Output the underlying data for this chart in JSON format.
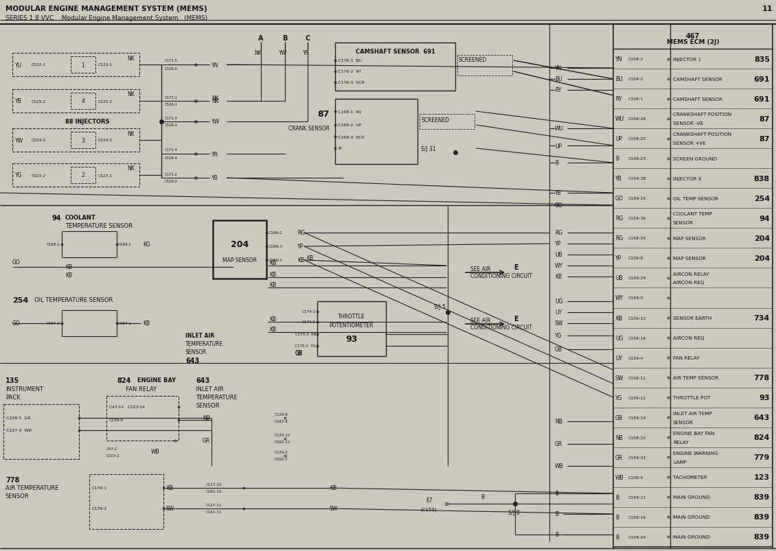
{
  "title_line1": "MODULAR ENGINE MANAGEMENT SYSTEM (MEMS)",
  "title_line2": "SERIES 1.8 VVC    Modular Engine Management System   (MEMS)",
  "page_num": "11",
  "bg_color": "#cdc9be",
  "line_color": "#222222",
  "text_color": "#111111",
  "ecm_rows": [
    {
      "wire": "YN",
      "conn": "C158-2",
      "label": "INJECTOR 1",
      "num": "835"
    },
    {
      "wire": "BU",
      "conn": "C158-2",
      "label": "CAMSHAFT SENSOR",
      "num": "691"
    },
    {
      "wire": "RY",
      "conn": "C158-1",
      "label": "CAMSHAFT SENSOR",
      "num": "691"
    },
    {
      "wire": "WU",
      "conn": "C158-28",
      "label": "CRANKSHAFT POSITION\nSENSOR -VE",
      "num": "87"
    },
    {
      "wire": "UP",
      "conn": "C158-25",
      "label": "CRANKSHAFT POSITION\nSENSOR +VE",
      "num": "87"
    },
    {
      "wire": "B",
      "conn": "C158-23",
      "label": "SCREEN GROUND",
      "num": ""
    },
    {
      "wire": "YB",
      "conn": "C159-38",
      "label": "INJECTOR 4",
      "num": "838"
    },
    {
      "wire": "GO",
      "conn": "C159-10",
      "label": "OIL TEMP SENSOR",
      "num": "254"
    },
    {
      "wire": "RG",
      "conn": "C159-36",
      "label": "COOLANT TEMP\nSENSOR",
      "num": "94"
    },
    {
      "wire": "RG",
      "conn": "C158-35",
      "label": "MAP SENSOR",
      "num": "204"
    },
    {
      "wire": "YP",
      "conn": "C159-8",
      "label": "MAP SENSOR",
      "num": "204"
    },
    {
      "wire": "UB",
      "conn": "C159-29",
      "label": "AIRCON RELAY\nAIRCON REQ",
      "num": ""
    },
    {
      "wire": "WY",
      "conn": "C159-9",
      "label": "",
      "num": ""
    },
    {
      "wire": "KB",
      "conn": "C159-13",
      "label": "SENSOR EARTH",
      "num": "734"
    },
    {
      "wire": "UG",
      "conn": "C158-19",
      "label": "AIRCON REQ",
      "num": ""
    },
    {
      "wire": "UY",
      "conn": "C159-4",
      "label": "FAN RELAY",
      "num": ""
    },
    {
      "wire": "SW",
      "conn": "C159-11",
      "label": "AIR TEMP SENSOR",
      "num": "778"
    },
    {
      "wire": "YG",
      "conn": "C159-12",
      "label": "THROTTLE POT",
      "num": "93"
    },
    {
      "wire": "GB",
      "conn": "C159-14",
      "label": "INLET AIR TEMP\nSENSOR",
      "num": "643"
    },
    {
      "wire": "NB",
      "conn": "C158-32",
      "label": "ENGINE BAY FAN\nRELAY",
      "num": "824"
    },
    {
      "wire": "GR",
      "conn": "C159-31",
      "label": "ENGINE WARNING\nLAMP",
      "num": "779"
    },
    {
      "wire": "WB",
      "conn": "C158-9",
      "label": "TACHOMETER",
      "num": "123"
    },
    {
      "wire": "B",
      "conn": "C159-21",
      "label": "MAIN GROUND",
      "num": "839"
    },
    {
      "wire": "B",
      "conn": "C158-16",
      "label": "MAIN GROUND",
      "num": "839"
    },
    {
      "wire": "B",
      "conn": "C158-24",
      "label": "MAIN GROUND",
      "num": "839"
    }
  ]
}
